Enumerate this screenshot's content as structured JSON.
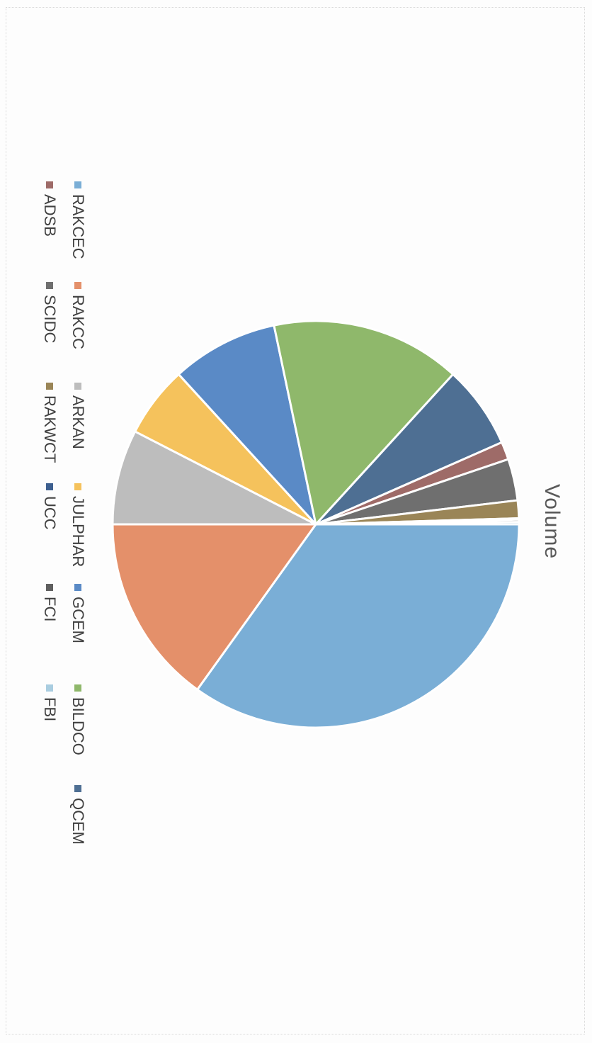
{
  "chart_data": {
    "type": "pie",
    "title": "Volume",
    "series": [
      {
        "categories": [
          "RAKCEC",
          "RAKCC",
          "ARKAN",
          "JULPHAR",
          "GCEM",
          "BILDCO",
          "QCEM",
          "ADSB",
          "SCIDC",
          "RAKWCT",
          "UCC",
          "FCI",
          "FBI"
        ],
        "values": [
          37.0,
          16.0,
          8.0,
          6.0,
          9.0,
          16.0,
          7.0,
          1.5,
          3.5,
          1.5,
          0.1,
          0.2,
          0.2
        ]
      }
    ],
    "colors": [
      "#7aaed6",
      "#e4906a",
      "#bdbdbd",
      "#f5c25c",
      "#5a8ac6",
      "#8fb86b",
      "#4e6f93",
      "#9e6b68",
      "#6f6f6f",
      "#9a8557",
      "#3d5f8f",
      "#5f5f5f",
      "#a9cde0"
    ],
    "legend": {
      "position": "bottom",
      "rows": [
        [
          "RAKCEC",
          "RAKCC",
          "ARKAN",
          "JULPHAR",
          "GCEM",
          "BILDCO",
          "QCEM"
        ],
        [
          "ADSB",
          "SCIDC",
          "RAKWCT",
          "UCC",
          "FCI",
          "FBI"
        ]
      ]
    }
  }
}
